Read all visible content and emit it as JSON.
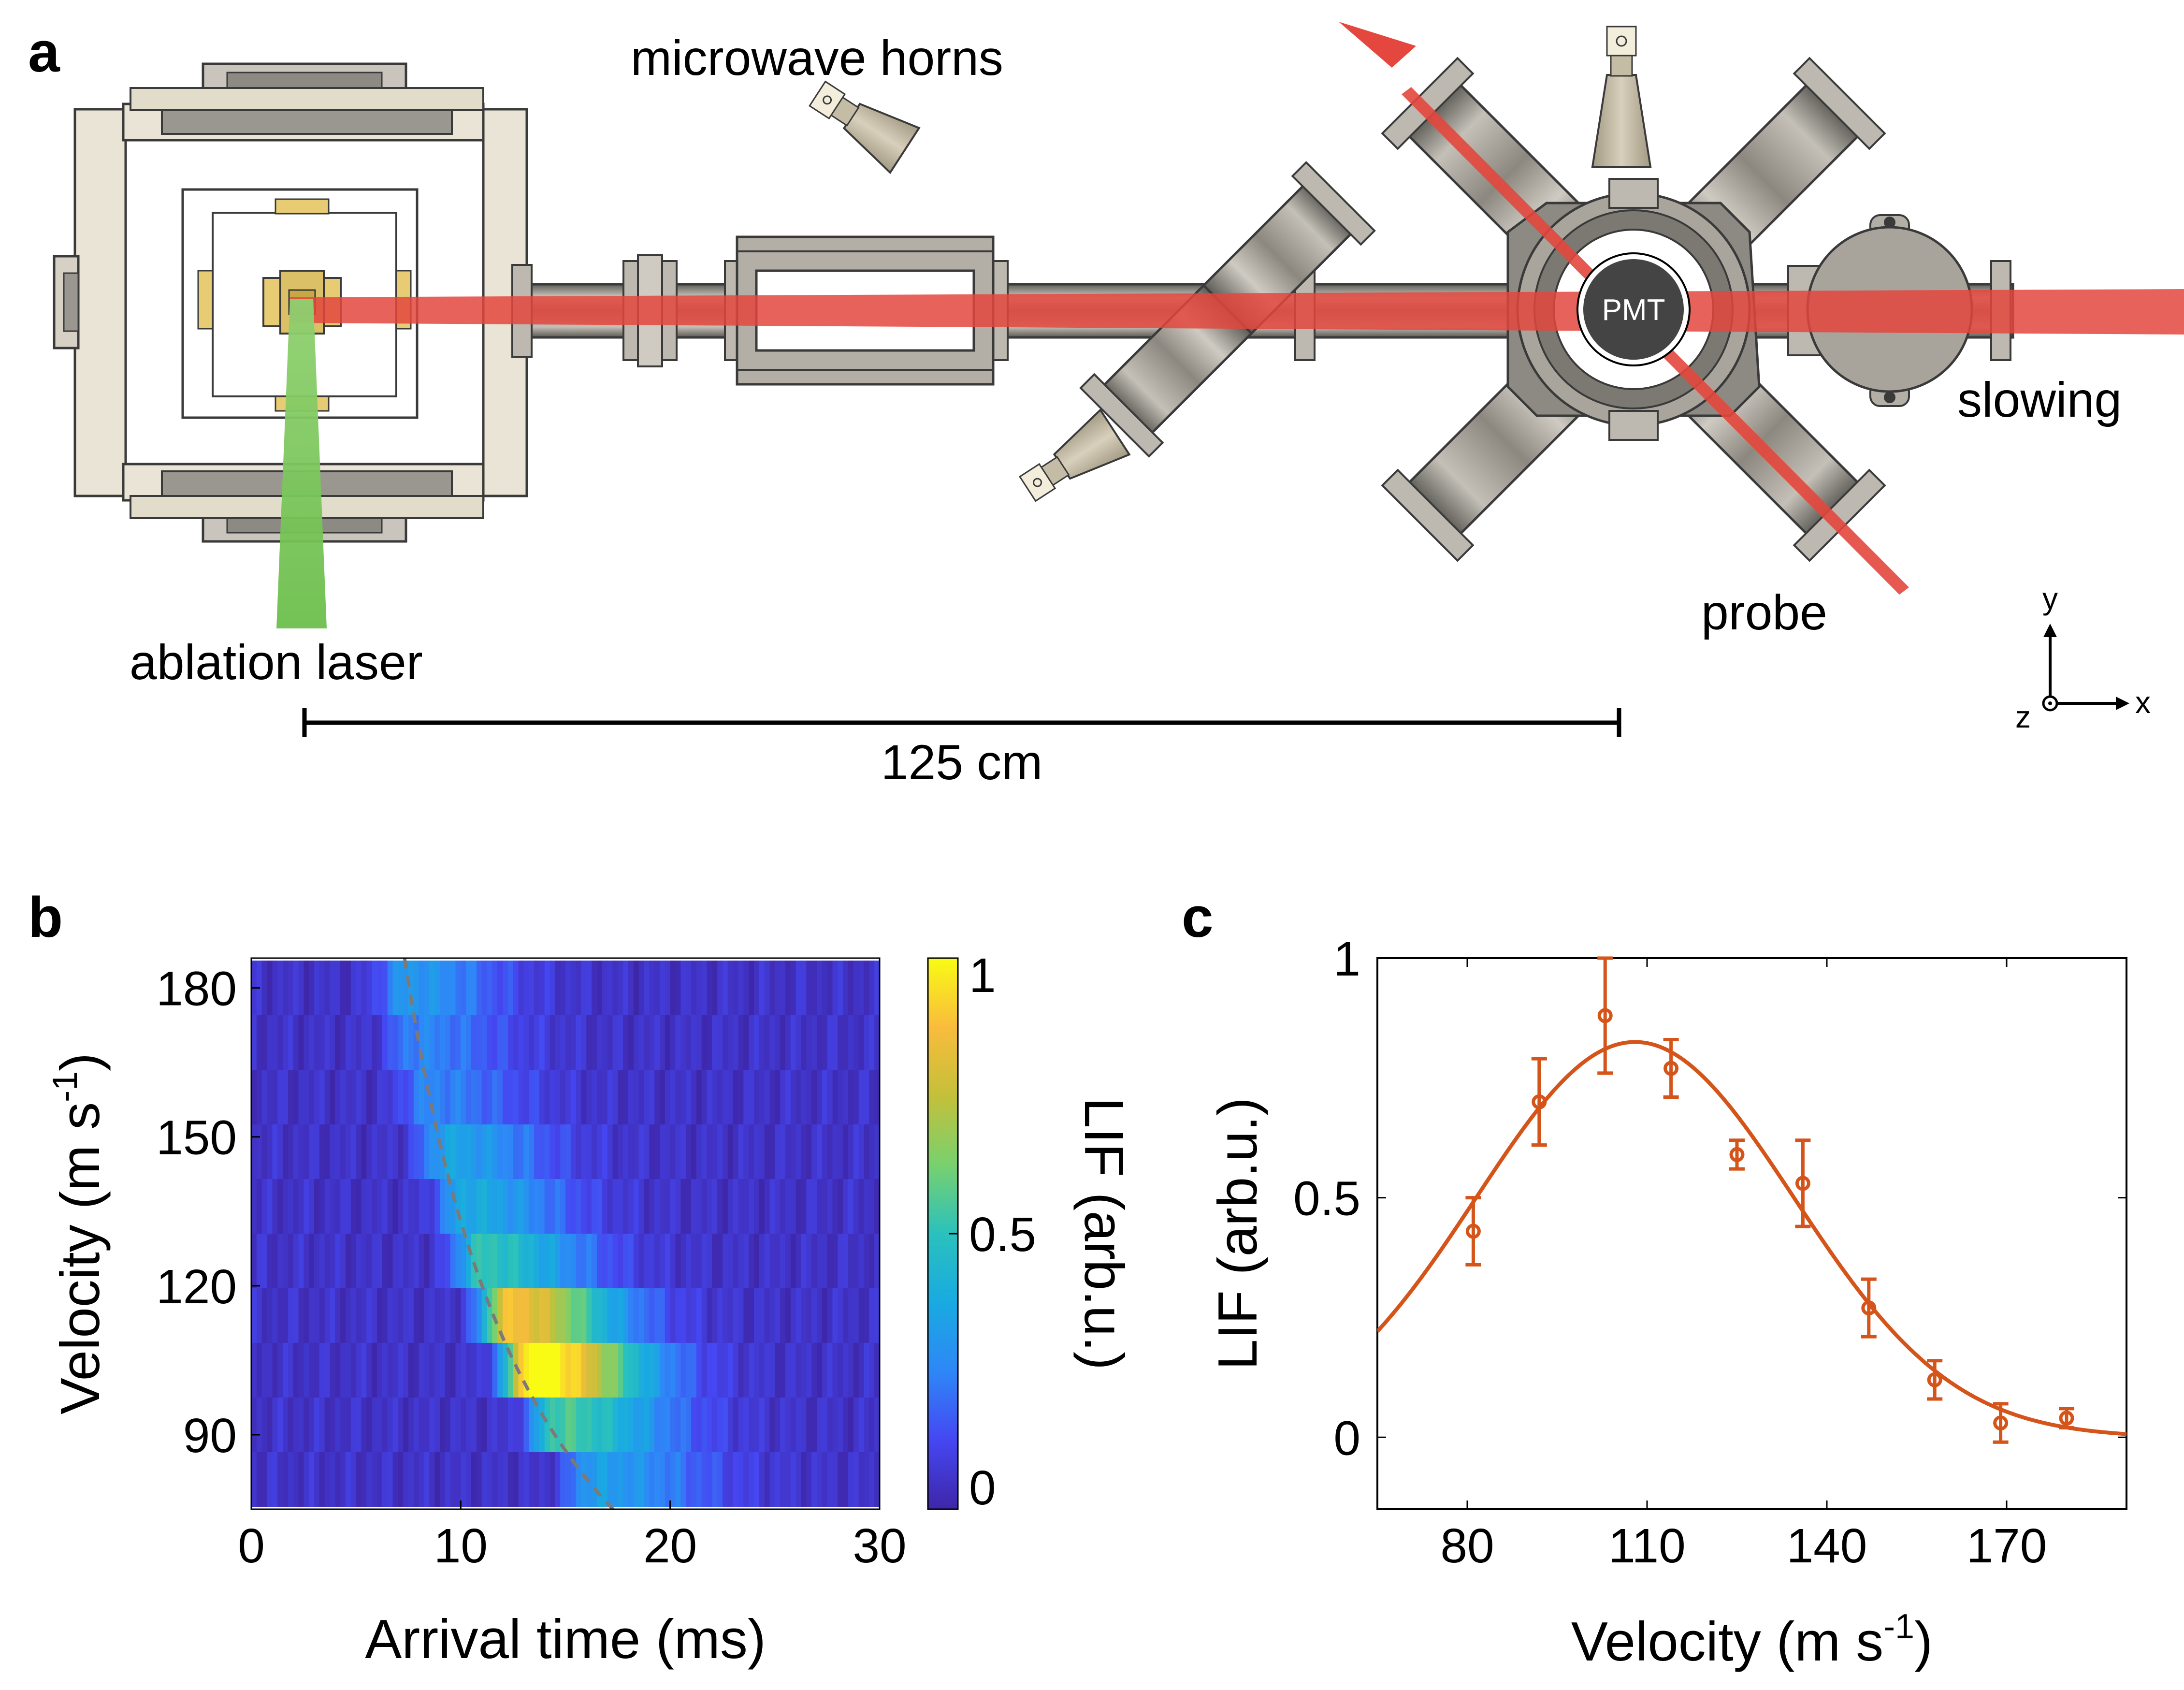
{
  "panel_a": {
    "letter": "a",
    "labels": {
      "microwave_horns": "microwave horns",
      "slowing": "slowing",
      "probe": "probe",
      "ablation_laser": "ablation laser",
      "pmt": "PMT",
      "scale": "125 cm",
      "axis_y": "y",
      "axis_x": "x",
      "axis_z": "z"
    },
    "colors": {
      "beam_red": "#e3473d",
      "ablation_green": "#6cbf4c",
      "chamber": "#b7b1a3",
      "pmt": "#3f3f3f"
    }
  },
  "panel_b": {
    "letter": "b",
    "xlabel": "Arrival time  (ms)",
    "ylabel_main": "Velocity (m s",
    "ylabel_sup": "-1",
    "ylabel_end": ")",
    "colorbar_label": "LIF (arb.u.)",
    "xticks": [
      "0",
      "10",
      "20",
      "30"
    ],
    "yticks": [
      "90",
      "120",
      "150",
      "180"
    ],
    "cticks": [
      "0",
      "0.5",
      "1"
    ],
    "colormap": "parula"
  },
  "panel_c": {
    "letter": "c",
    "xlabel_main": "Velocity (m s",
    "xlabel_sup": "-1",
    "xlabel_end": ")",
    "ylabel": "LIF (arb.u.)",
    "xticks": [
      "80",
      "110",
      "140",
      "170"
    ],
    "yticks": [
      "0",
      "0.5",
      "1"
    ],
    "color": "#d4541a"
  },
  "chart_data": [
    {
      "type": "heatmap",
      "panel": "b",
      "xlabel": "Arrival time  (ms)",
      "ylabel": "Velocity (m s-1)",
      "xlim": [
        0,
        30
      ],
      "ylim": [
        75,
        186
      ],
      "clim": [
        0,
        1
      ],
      "colorbar_label": "LIF (arb.u.)",
      "rows": [
        {
          "velocity": 180,
          "peak_time": 7.4,
          "peak": 0.26
        },
        {
          "velocity": 169,
          "peak_time": 7.8,
          "peak": 0.2
        },
        {
          "velocity": 158,
          "peak_time": 8.4,
          "peak": 0.2
        },
        {
          "velocity": 147,
          "peak_time": 9.3,
          "peak": 0.3
        },
        {
          "velocity": 136,
          "peak_time": 10.2,
          "peak": 0.33
        },
        {
          "velocity": 125,
          "peak_time": 11.0,
          "peak": 0.46
        },
        {
          "velocity": 114,
          "peak_time": 12.3,
          "peak": 0.82
        },
        {
          "velocity": 103,
          "peak_time": 13.4,
          "peak": 1.0
        },
        {
          "velocity": 92,
          "peak_time": 14.6,
          "peak": 0.5
        },
        {
          "velocity": 81,
          "peak_time": 16.3,
          "peak": 0.28
        }
      ],
      "dashed_curve": "t = 1.25 m / v",
      "background": 0.05
    },
    {
      "type": "scatter",
      "panel": "c",
      "xlabel": "Velocity (m s-1)",
      "ylabel": "LIF (arb.u.)",
      "xlim": [
        65,
        190
      ],
      "ylim": [
        -0.15,
        1.0
      ],
      "x": [
        81,
        92,
        103,
        114,
        125,
        136,
        147,
        158,
        169,
        180
      ],
      "y": [
        0.43,
        0.7,
        0.88,
        0.77,
        0.59,
        0.53,
        0.27,
        0.12,
        0.03,
        0.04
      ],
      "yerr": [
        0.07,
        0.09,
        0.12,
        0.06,
        0.03,
        0.09,
        0.06,
        0.04,
        0.04,
        0.02
      ],
      "fit": {
        "type": "gaussian",
        "amplitude": 0.825,
        "center": 108,
        "sigma": 26.5
      }
    }
  ]
}
